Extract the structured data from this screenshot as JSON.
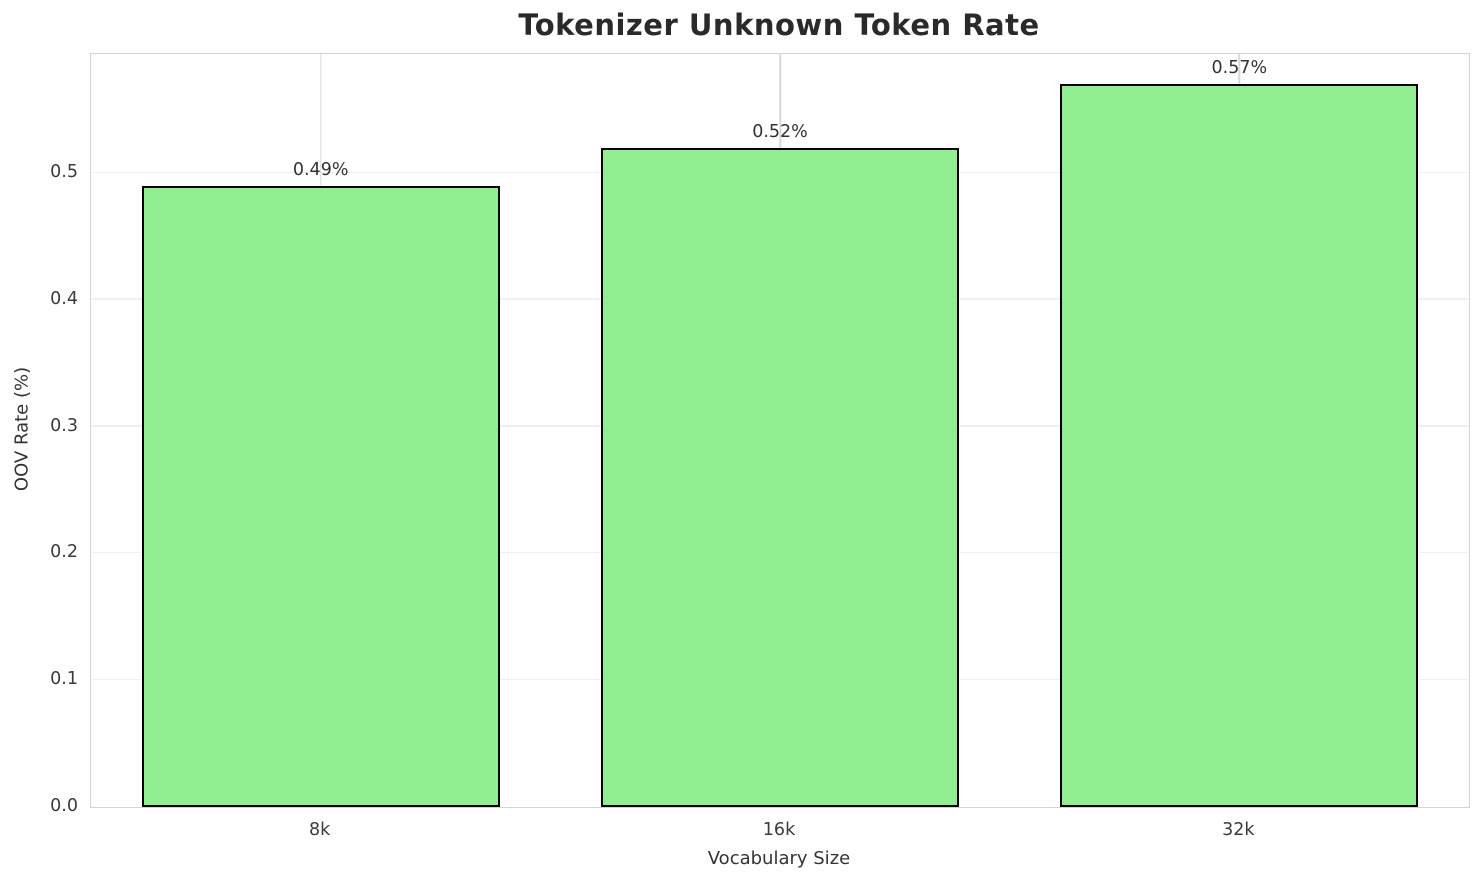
{
  "chart_data": {
    "type": "bar",
    "title": "Tokenizer Unknown Token Rate",
    "xlabel": "Vocabulary Size",
    "ylabel": "OOV Rate (%)",
    "categories": [
      "8k",
      "16k",
      "32k"
    ],
    "values": [
      0.49,
      0.52,
      0.57
    ],
    "value_labels": [
      "0.49%",
      "0.52%",
      "0.57%"
    ],
    "yticks": [
      0.0,
      0.1,
      0.2,
      0.3,
      0.4,
      0.5
    ],
    "ytick_labels": [
      "0.0",
      "0.1",
      "0.2",
      "0.3",
      "0.4",
      "0.5"
    ],
    "ylim": [
      0,
      0.594
    ],
    "grid": true,
    "legend": false,
    "bar_color": "#90ee90",
    "bar_edge_color": "#000000",
    "bar_width_fraction": 0.78
  }
}
